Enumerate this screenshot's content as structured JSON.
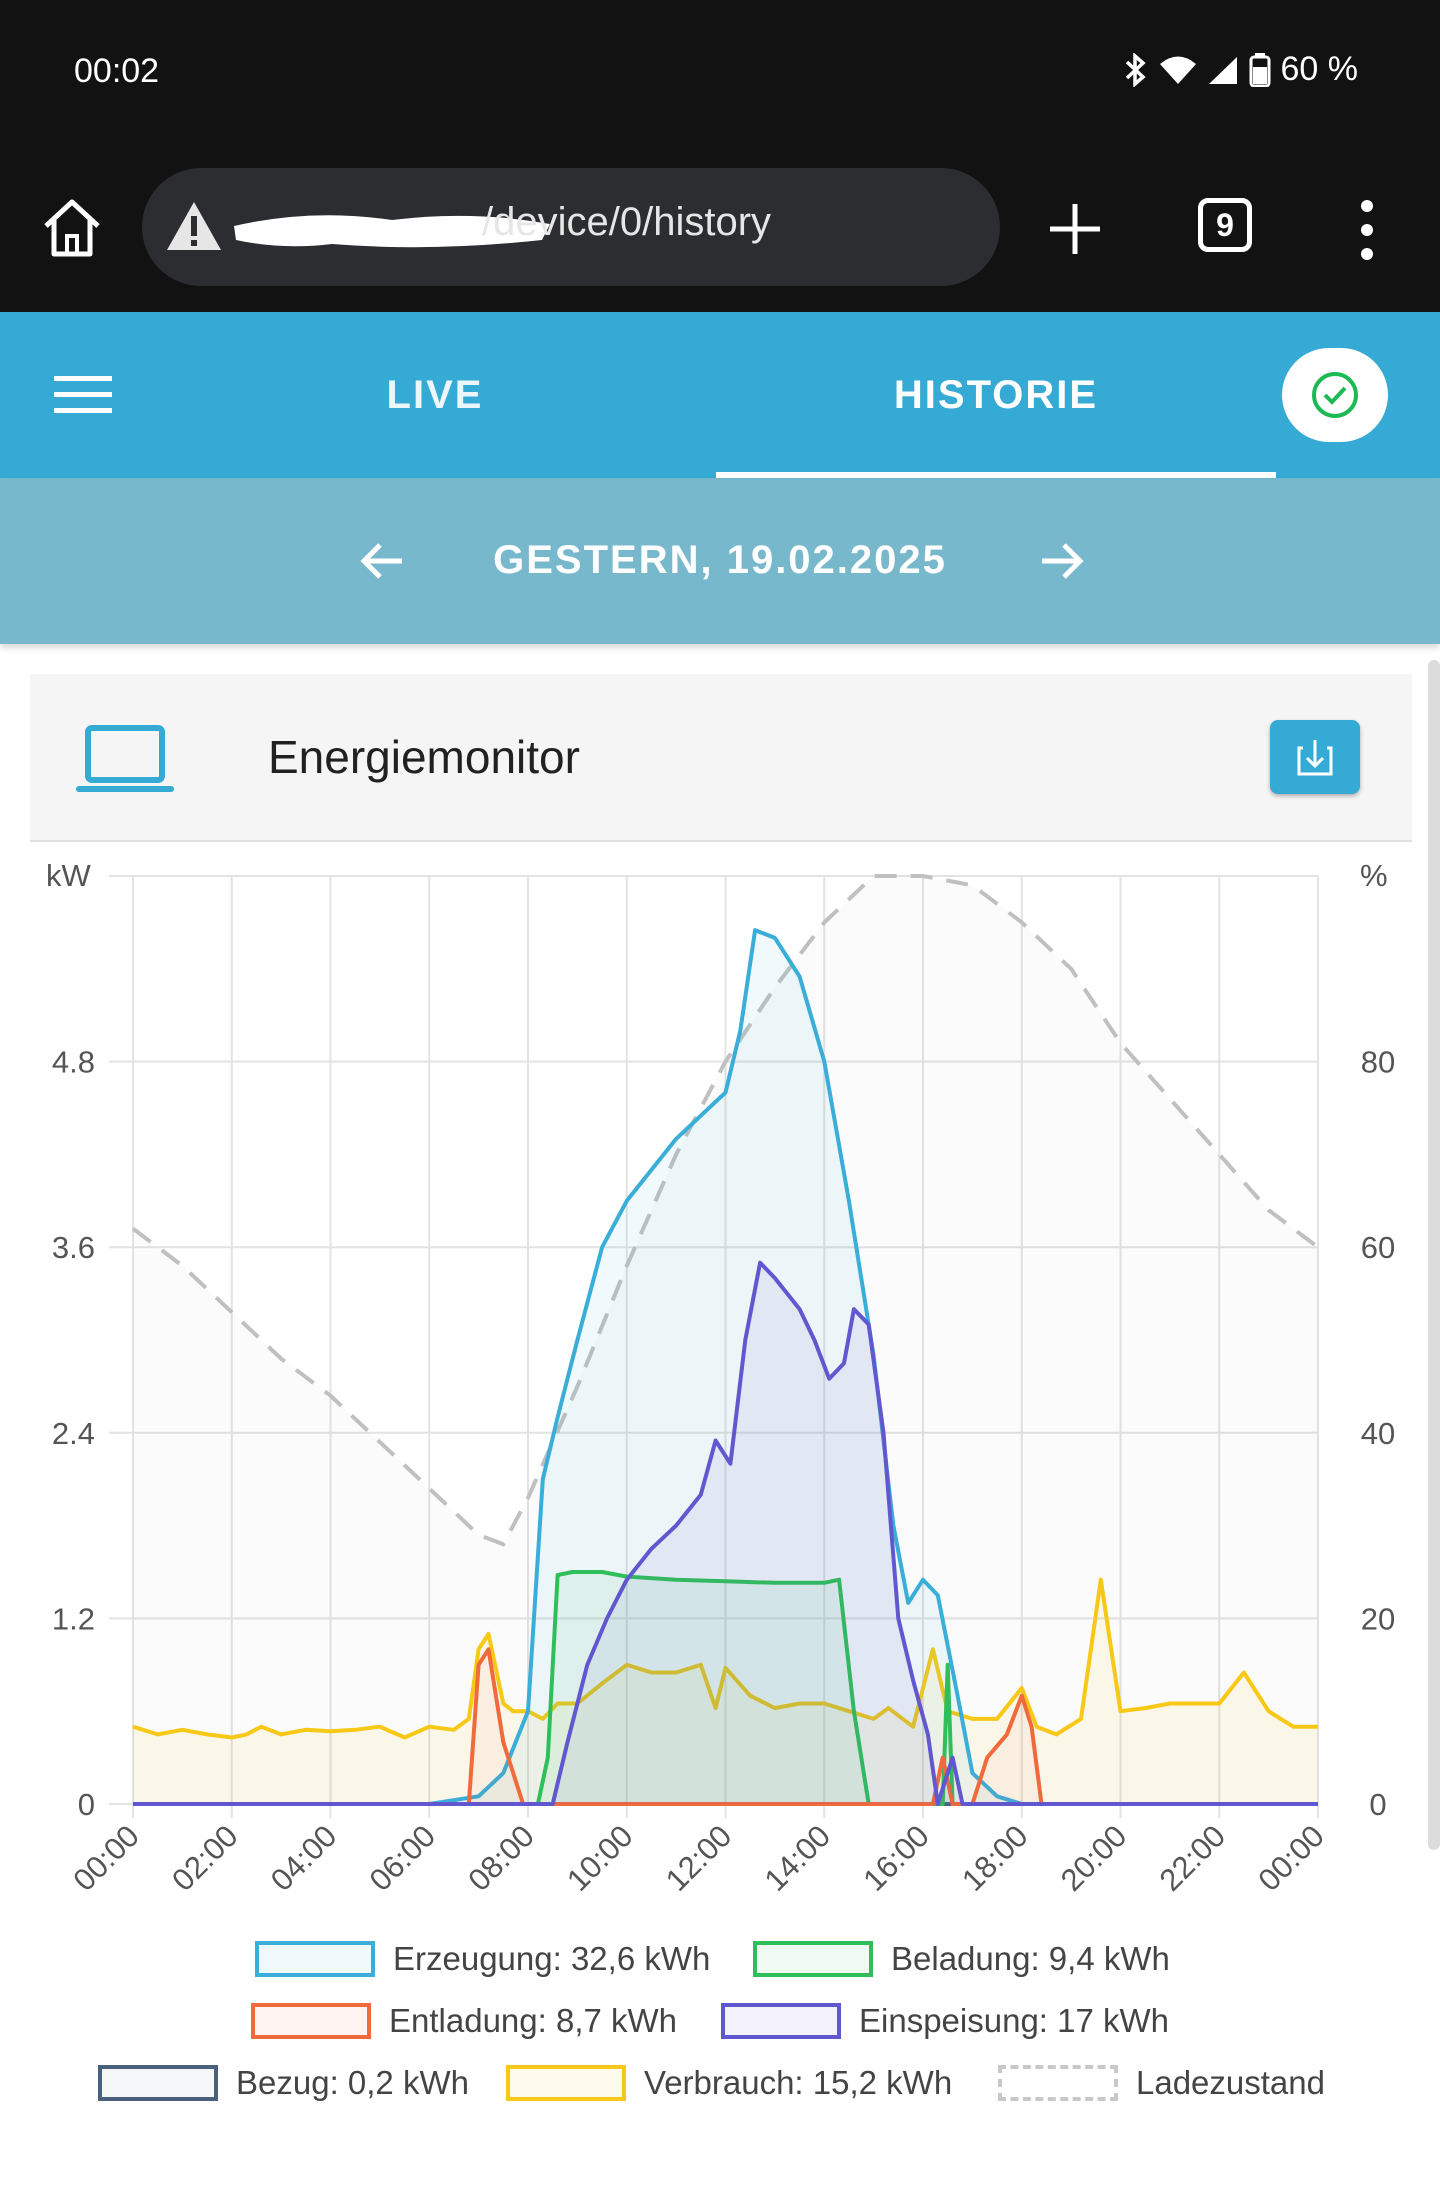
{
  "status": {
    "time": "00:02",
    "battery": "60 %"
  },
  "browser": {
    "url": "/device/0/history",
    "tab_count": "9"
  },
  "appbar": {
    "tabs": [
      "LIVE",
      "HISTORIE"
    ],
    "active_tab": "HISTORIE"
  },
  "datebar": {
    "date": "GESTERN, 19.02.2025"
  },
  "card": {
    "title": "Energiemonitor"
  },
  "chart_data": {
    "type": "line",
    "y_left_label": "kW",
    "y_right_label": "%",
    "y_left_ticks": [
      "0",
      "1.2",
      "2.4",
      "3.6",
      "4.8"
    ],
    "y_right_ticks": [
      "0",
      "20",
      "40",
      "60",
      "80"
    ],
    "ylim_left": [
      0,
      6.0
    ],
    "ylim_right": [
      0,
      100
    ],
    "x_ticks": [
      "00:00",
      "02:00",
      "04:00",
      "06:00",
      "08:00",
      "10:00",
      "12:00",
      "14:00",
      "16:00",
      "18:00",
      "20:00",
      "22:00",
      "00:00"
    ],
    "grid": true,
    "legend_position": "bottom",
    "series": [
      {
        "name": "Erzeugung: 32,6 kWh",
        "color": "#3aaed8",
        "fill": "rgba(58,174,216,0.08)",
        "points": [
          [
            0,
            0
          ],
          [
            6,
            0
          ],
          [
            7,
            0.05
          ],
          [
            7.5,
            0.2
          ],
          [
            8,
            0.6
          ],
          [
            8.3,
            2.1
          ],
          [
            8.6,
            2.5
          ],
          [
            9,
            3.0
          ],
          [
            9.5,
            3.6
          ],
          [
            10,
            3.9
          ],
          [
            10.5,
            4.1
          ],
          [
            11,
            4.3
          ],
          [
            11.5,
            4.45
          ],
          [
            12,
            4.6
          ],
          [
            12.3,
            5.0
          ],
          [
            12.6,
            5.65
          ],
          [
            13,
            5.6
          ],
          [
            13.5,
            5.35
          ],
          [
            14,
            4.8
          ],
          [
            14.5,
            3.9
          ],
          [
            15,
            2.9
          ],
          [
            15.4,
            1.8
          ],
          [
            15.7,
            1.3
          ],
          [
            16,
            1.45
          ],
          [
            16.3,
            1.35
          ],
          [
            16.7,
            0.7
          ],
          [
            17,
            0.2
          ],
          [
            17.5,
            0.05
          ],
          [
            18,
            0
          ],
          [
            24,
            0
          ]
        ]
      },
      {
        "name": "Beladung: 9,4 kWh",
        "color": "#2fbf5a",
        "fill": "rgba(47,191,90,0.08)",
        "points": [
          [
            0,
            0
          ],
          [
            8.2,
            0
          ],
          [
            8.4,
            0.3
          ],
          [
            8.6,
            1.48
          ],
          [
            8.9,
            1.5
          ],
          [
            9.5,
            1.5
          ],
          [
            10,
            1.47
          ],
          [
            11,
            1.45
          ],
          [
            12,
            1.44
          ],
          [
            13,
            1.43
          ],
          [
            14,
            1.43
          ],
          [
            14.3,
            1.45
          ],
          [
            14.6,
            0.6
          ],
          [
            14.9,
            0
          ],
          [
            16.4,
            0
          ],
          [
            16.5,
            0.9
          ],
          [
            16.6,
            0
          ],
          [
            24,
            0
          ]
        ]
      },
      {
        "name": "Entladung: 8,7 kWh",
        "color": "#f06a3c",
        "fill": "rgba(240,106,60,0.06)",
        "points": [
          [
            0,
            0
          ],
          [
            6.8,
            0
          ],
          [
            7,
            0.9
          ],
          [
            7.2,
            1.0
          ],
          [
            7.5,
            0.4
          ],
          [
            7.9,
            0
          ],
          [
            16.2,
            0
          ],
          [
            16.4,
            0.3
          ],
          [
            16.6,
            0
          ],
          [
            17,
            0
          ],
          [
            17.3,
            0.3
          ],
          [
            17.7,
            0.45
          ],
          [
            18,
            0.7
          ],
          [
            18.2,
            0.5
          ],
          [
            18.4,
            0
          ],
          [
            24,
            0
          ]
        ]
      },
      {
        "name": "Einspeisung: 17 kWh",
        "color": "#6157cf",
        "fill": "rgba(97,87,207,0.08)",
        "points": [
          [
            0,
            0
          ],
          [
            8.5,
            0
          ],
          [
            8.8,
            0.4
          ],
          [
            9.2,
            0.9
          ],
          [
            9.6,
            1.2
          ],
          [
            10,
            1.45
          ],
          [
            10.5,
            1.65
          ],
          [
            11,
            1.8
          ],
          [
            11.5,
            2.0
          ],
          [
            11.8,
            2.35
          ],
          [
            12.1,
            2.2
          ],
          [
            12.4,
            3.0
          ],
          [
            12.7,
            3.5
          ],
          [
            13,
            3.4
          ],
          [
            13.5,
            3.2
          ],
          [
            13.8,
            3.0
          ],
          [
            14.1,
            2.75
          ],
          [
            14.4,
            2.85
          ],
          [
            14.6,
            3.2
          ],
          [
            14.9,
            3.1
          ],
          [
            15.2,
            2.4
          ],
          [
            15.5,
            1.2
          ],
          [
            15.8,
            0.8
          ],
          [
            16.1,
            0.45
          ],
          [
            16.3,
            0
          ],
          [
            16.6,
            0.3
          ],
          [
            16.8,
            0
          ],
          [
            24,
            0
          ]
        ]
      },
      {
        "name": "Bezug: 0,2 kWh",
        "color": "#4a607c",
        "fill": "rgba(74,96,124,0.05)",
        "points": [
          [
            0,
            0
          ],
          [
            24,
            0
          ]
        ]
      },
      {
        "name": "Verbrauch: 15,2 kWh",
        "color": "#f7c815",
        "fill": "rgba(247,200,21,0.08)",
        "points": [
          [
            0,
            0.5
          ],
          [
            0.5,
            0.45
          ],
          [
            1,
            0.48
          ],
          [
            1.5,
            0.45
          ],
          [
            2,
            0.43
          ],
          [
            2.3,
            0.45
          ],
          [
            2.6,
            0.5
          ],
          [
            3,
            0.45
          ],
          [
            3.5,
            0.48
          ],
          [
            4,
            0.47
          ],
          [
            4.5,
            0.48
          ],
          [
            5,
            0.5
          ],
          [
            5.5,
            0.43
          ],
          [
            6,
            0.5
          ],
          [
            6.5,
            0.48
          ],
          [
            6.8,
            0.55
          ],
          [
            7,
            1.0
          ],
          [
            7.2,
            1.1
          ],
          [
            7.5,
            0.65
          ],
          [
            7.7,
            0.6
          ],
          [
            8,
            0.6
          ],
          [
            8.3,
            0.55
          ],
          [
            8.6,
            0.65
          ],
          [
            9,
            0.65
          ],
          [
            9.5,
            0.78
          ],
          [
            10,
            0.9
          ],
          [
            10.5,
            0.85
          ],
          [
            11,
            0.85
          ],
          [
            11.5,
            0.9
          ],
          [
            11.8,
            0.62
          ],
          [
            12,
            0.88
          ],
          [
            12.5,
            0.7
          ],
          [
            13,
            0.62
          ],
          [
            13.5,
            0.65
          ],
          [
            14,
            0.65
          ],
          [
            14.5,
            0.6
          ],
          [
            15,
            0.55
          ],
          [
            15.3,
            0.62
          ],
          [
            15.8,
            0.5
          ],
          [
            16.2,
            1.0
          ],
          [
            16.5,
            0.6
          ],
          [
            17,
            0.55
          ],
          [
            17.5,
            0.55
          ],
          [
            18,
            0.75
          ],
          [
            18.3,
            0.5
          ],
          [
            18.7,
            0.45
          ],
          [
            19.2,
            0.55
          ],
          [
            19.6,
            1.45
          ],
          [
            20,
            0.6
          ],
          [
            20.5,
            0.62
          ],
          [
            21,
            0.65
          ],
          [
            21.5,
            0.65
          ],
          [
            22,
            0.65
          ],
          [
            22.5,
            0.85
          ],
          [
            23,
            0.6
          ],
          [
            23.5,
            0.5
          ],
          [
            24,
            0.5
          ]
        ]
      },
      {
        "name": "Ladezustand",
        "color": "#c0c0c0",
        "dashed": true,
        "axis": "right",
        "points": [
          [
            0,
            62
          ],
          [
            1,
            58
          ],
          [
            2,
            53
          ],
          [
            3,
            48
          ],
          [
            4,
            44
          ],
          [
            5,
            39
          ],
          [
            6,
            34
          ],
          [
            7,
            29
          ],
          [
            7.5,
            28
          ],
          [
            8,
            33
          ],
          [
            9,
            45
          ],
          [
            10,
            58
          ],
          [
            11,
            70
          ],
          [
            12,
            80
          ],
          [
            13,
            88
          ],
          [
            14,
            95
          ],
          [
            15,
            100
          ],
          [
            16,
            100
          ],
          [
            17,
            99
          ],
          [
            18,
            95
          ],
          [
            19,
            90
          ],
          [
            20,
            82
          ],
          [
            21,
            76
          ],
          [
            22,
            70
          ],
          [
            23,
            64
          ],
          [
            24,
            60
          ]
        ]
      }
    ]
  },
  "legend": {
    "items": [
      "Erzeugung: 32,6 kWh",
      "Beladung: 9,4 kWh",
      "Entladung: 8,7 kWh",
      "Einspeisung: 17 kWh",
      "Bezug: 0,2 kWh",
      "Verbrauch: 15,2 kWh",
      "Ladezustand"
    ]
  }
}
